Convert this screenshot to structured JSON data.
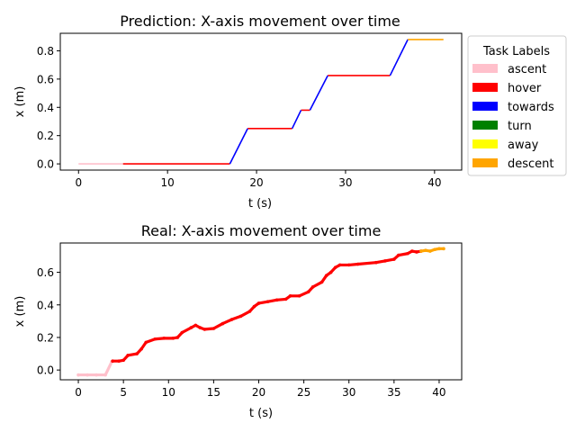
{
  "chart_data": [
    {
      "type": "line",
      "title": "Prediction: X-axis movement over time",
      "xlabel": "t (s)",
      "ylabel": "x (m)",
      "xlim": [
        -2.05,
        43.05
      ],
      "ylim": [
        -0.044,
        0.924
      ],
      "xticks": [
        0,
        10,
        20,
        30,
        40
      ],
      "xtick_labels": [
        "0",
        "10",
        "20",
        "30",
        "40"
      ],
      "yticks": [
        0.0,
        0.2,
        0.4,
        0.6,
        0.8
      ],
      "ytick_labels": [
        "0.0",
        "0.2",
        "0.4",
        "0.6",
        "0.8"
      ],
      "grid": false,
      "series": [
        {
          "name": "ascent",
          "color": "#ffc0cb",
          "segments": [
            [
              [
                0,
                0
              ],
              [
                5,
                0
              ]
            ]
          ]
        },
        {
          "name": "hover",
          "color": "#ff0000",
          "segments": [
            [
              [
                5,
                0
              ],
              [
                17,
                0
              ]
            ],
            [
              [
                19,
                0.25
              ],
              [
                24,
                0.25
              ]
            ],
            [
              [
                25,
                0.38
              ],
              [
                26,
                0.38
              ]
            ],
            [
              [
                28,
                0.625
              ],
              [
                35,
                0.625
              ]
            ]
          ]
        },
        {
          "name": "towards",
          "color": "#0000ff",
          "segments": [
            [
              [
                17,
                0
              ],
              [
                19,
                0.25
              ]
            ],
            [
              [
                24,
                0.25
              ],
              [
                25,
                0.38
              ]
            ],
            [
              [
                26,
                0.38
              ],
              [
                28,
                0.625
              ]
            ],
            [
              [
                35,
                0.625
              ],
              [
                37,
                0.88
              ]
            ]
          ]
        },
        {
          "name": "descent",
          "color": "#ffa500",
          "segments": [
            [
              [
                37,
                0.88
              ],
              [
                41,
                0.88
              ]
            ]
          ]
        }
      ],
      "legend": {
        "title": "Task Labels",
        "placement": "outside right",
        "entries": [
          {
            "label": "ascent",
            "color": "#ffc0cb"
          },
          {
            "label": "hover",
            "color": "#ff0000"
          },
          {
            "label": "towards",
            "color": "#0000ff"
          },
          {
            "label": "turn",
            "color": "#008000"
          },
          {
            "label": "away",
            "color": "#ffff00"
          },
          {
            "label": "descent",
            "color": "#ffa500"
          }
        ]
      }
    },
    {
      "type": "scatter",
      "title": "Real: X-axis movement over time",
      "xlabel": "t (s)",
      "ylabel": "x (m)",
      "xlim": [
        -2.0,
        42.5
      ],
      "ylim": [
        -0.06,
        0.78
      ],
      "xticks": [
        0,
        5,
        10,
        15,
        20,
        25,
        30,
        35,
        40
      ],
      "xtick_labels": [
        "0",
        "5",
        "10",
        "15",
        "20",
        "25",
        "30",
        "35",
        "40"
      ],
      "yticks": [
        0.0,
        0.2,
        0.4,
        0.6
      ],
      "ytick_labels": [
        "0.0",
        "0.2",
        "0.4",
        "0.6"
      ],
      "grid": false,
      "series": [
        {
          "name": "ascent",
          "color": "#ffc0cb",
          "points": [
            [
              0,
              -0.03
            ],
            [
              1,
              -0.03
            ],
            [
              2,
              -0.03
            ],
            [
              3,
              -0.03
            ],
            [
              3.7,
              0.05
            ]
          ]
        },
        {
          "name": "hover",
          "color": "#ff0000",
          "points": [
            [
              3.8,
              0.055
            ],
            [
              4.5,
              0.055
            ],
            [
              5,
              0.06
            ],
            [
              5.5,
              0.09
            ],
            [
              6.5,
              0.1
            ],
            [
              7,
              0.13
            ],
            [
              7.5,
              0.17
            ],
            [
              8.5,
              0.19
            ],
            [
              9.5,
              0.195
            ],
            [
              10.5,
              0.195
            ],
            [
              11,
              0.2
            ],
            [
              11.5,
              0.23
            ],
            [
              12.5,
              0.26
            ],
            [
              13,
              0.275
            ],
            [
              13.5,
              0.26
            ],
            [
              14,
              0.25
            ],
            [
              15,
              0.255
            ],
            [
              16,
              0.285
            ],
            [
              17,
              0.31
            ],
            [
              18,
              0.33
            ],
            [
              19,
              0.36
            ],
            [
              19.5,
              0.39
            ],
            [
              20,
              0.41
            ],
            [
              21,
              0.42
            ],
            [
              22,
              0.43
            ],
            [
              23,
              0.435
            ],
            [
              23.5,
              0.455
            ],
            [
              24.5,
              0.455
            ],
            [
              25.5,
              0.48
            ],
            [
              26,
              0.51
            ],
            [
              27,
              0.54
            ],
            [
              27.5,
              0.58
            ],
            [
              28,
              0.6
            ],
            [
              28.5,
              0.63
            ],
            [
              29,
              0.645
            ],
            [
              30,
              0.645
            ],
            [
              31,
              0.65
            ],
            [
              33,
              0.66
            ],
            [
              34,
              0.67
            ],
            [
              35,
              0.68
            ],
            [
              35.5,
              0.705
            ],
            [
              36.5,
              0.715
            ],
            [
              37,
              0.73
            ],
            [
              37.5,
              0.725
            ],
            [
              38,
              0.73
            ]
          ]
        },
        {
          "name": "descent",
          "color": "#ffa500",
          "points": [
            [
              38,
              0.73
            ],
            [
              38.5,
              0.735
            ],
            [
              39,
              0.73
            ],
            [
              39.5,
              0.74
            ],
            [
              40,
              0.745
            ],
            [
              40.5,
              0.745
            ]
          ]
        }
      ]
    }
  ]
}
